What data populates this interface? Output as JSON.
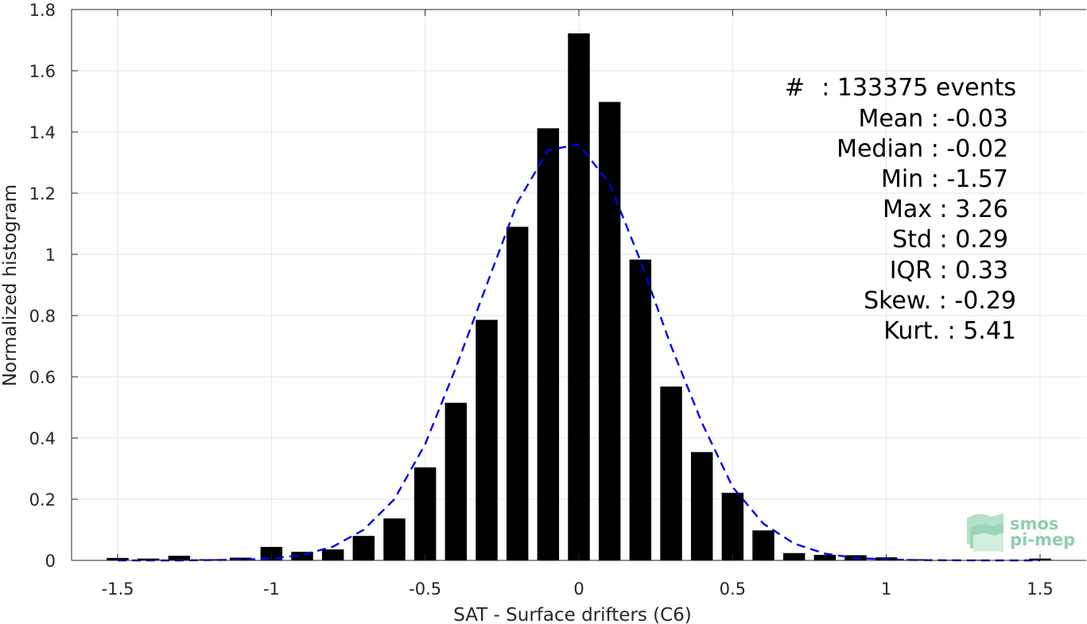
{
  "chart_data": {
    "type": "bar",
    "xlabel": "SAT - Surface drifters (C6)",
    "ylabel": "Normalized histogram",
    "xlim": [
      -1.65,
      1.65
    ],
    "ylim": [
      0,
      1.8
    ],
    "xticks": [
      -1.5,
      -1,
      -0.5,
      0,
      0.5,
      1,
      1.5
    ],
    "xtick_labels": [
      "-1.5",
      "-1",
      "-0.5",
      "0",
      "0.5",
      "1",
      "1.5"
    ],
    "yticks": [
      0,
      0.2,
      0.4,
      0.6,
      0.8,
      1,
      1.2,
      1.4,
      1.6,
      1.8
    ],
    "ytick_labels": [
      "0",
      "0.2",
      "0.4",
      "0.6",
      "0.8",
      "1",
      "1.2",
      "1.4",
      "1.6",
      "1.8"
    ],
    "grid": true,
    "bar_color": "#000000",
    "fit_color": "#0000ee",
    "bars": {
      "x": [
        -1.5,
        -1.4,
        -1.3,
        -1.2,
        -1.1,
        -1.0,
        -0.9,
        -0.8,
        -0.7,
        -0.6,
        -0.5,
        -0.4,
        -0.3,
        -0.2,
        -0.1,
        0.0,
        0.1,
        0.2,
        0.3,
        0.4,
        0.5,
        0.6,
        0.7,
        0.8,
        0.9,
        1.0,
        1.1,
        1.2,
        1.3,
        1.4,
        1.5
      ],
      "values": [
        0.008,
        0.006,
        0.015,
        0.004,
        0.009,
        0.044,
        0.028,
        0.036,
        0.08,
        0.137,
        0.304,
        0.515,
        0.786,
        1.09,
        1.412,
        1.722,
        1.498,
        0.983,
        0.568,
        0.354,
        0.221,
        0.098,
        0.024,
        0.018,
        0.017,
        0.01,
        0.004,
        0.002,
        0.002,
        0.001,
        0.006
      ]
    },
    "fit": {
      "style": "dashed",
      "x": [
        -1.5,
        -1.3,
        -1.1,
        -1.0,
        -0.9,
        -0.8,
        -0.7,
        -0.6,
        -0.5,
        -0.4,
        -0.3,
        -0.2,
        -0.1,
        0.0,
        0.1,
        0.2,
        0.3,
        0.4,
        0.5,
        0.6,
        0.7,
        0.8,
        0.9,
        1.0,
        1.1,
        1.3,
        1.5
      ],
      "y": [
        0.0,
        0.0,
        0.002,
        0.006,
        0.018,
        0.045,
        0.1,
        0.2,
        0.38,
        0.63,
        0.9,
        1.17,
        1.34,
        1.36,
        1.23,
        0.98,
        0.7,
        0.45,
        0.24,
        0.12,
        0.055,
        0.022,
        0.008,
        0.003,
        0.001,
        0.0,
        0.0
      ]
    }
  },
  "stats": [
    {
      "label": "#  ",
      "value": "133375 events"
    },
    {
      "label": "Mean",
      "value": "-0.03"
    },
    {
      "label": "Median",
      "value": "-0.02"
    },
    {
      "label": "Min",
      "value": "-1.57"
    },
    {
      "label": "Max",
      "value": "3.26"
    },
    {
      "label": "Std",
      "value": "0.29"
    },
    {
      "label": "IQR",
      "value": "0.33"
    },
    {
      "label": "Skew.",
      "value": "-0.29"
    },
    {
      "label": "Kurt.",
      "value": "5.41"
    }
  ],
  "logo": {
    "line1": "smos",
    "line2": "pi-mep"
  }
}
